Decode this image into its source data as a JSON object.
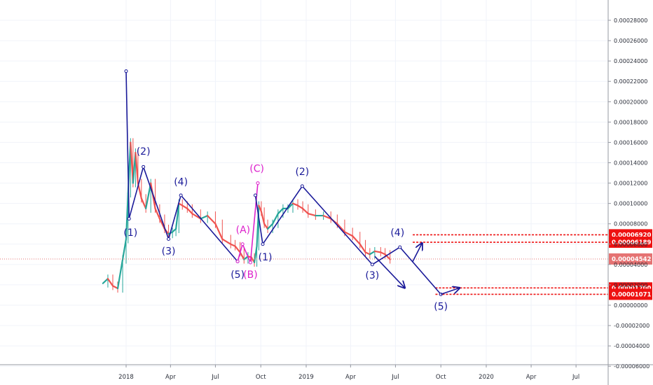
{
  "chart_data": {
    "type": "line",
    "title": "",
    "xlabel": "",
    "ylabel": "",
    "x_ticks": [
      "2018",
      "Apr",
      "Jul",
      "Oct",
      "2019",
      "Apr",
      "Jul",
      "Oct",
      "2020",
      "Apr",
      "Jul"
    ],
    "y_ticks": [
      "0.00028000",
      "0.00026000",
      "0.00024000",
      "0.00022000",
      "0.00020000",
      "0.00018000",
      "0.00016000",
      "0.00014000",
      "0.00012000",
      "0.00010000",
      "0.00008000",
      "0.00006000",
      "0.00004000",
      "0.00002000",
      "0.00000000",
      "-0.00002000",
      "-0.00004000",
      "-0.00006000"
    ],
    "ylim": [
      -6e-05,
      0.000296
    ],
    "grid": true,
    "current_price": "0.00004542",
    "horizontal_levels": [
      {
        "label": "0.00006920",
        "value": 6.92e-05
      },
      {
        "label": "0.00006189",
        "value": 6.189e-05
      },
      {
        "label": "0.00001700",
        "value": 1.7e-05
      },
      {
        "label": "0.00001071",
        "value": 1.071e-05
      }
    ],
    "price_series": {
      "name": "",
      "x": [
        "2017-11-15",
        "2017-11-25",
        "2017-12-05",
        "2017-12-15",
        "2017-12-25",
        "2018-01-01",
        "2018-01-05",
        "2018-01-10",
        "2018-01-15",
        "2018-01-20",
        "2018-01-25",
        "2018-02-01",
        "2018-02-10",
        "2018-02-20",
        "2018-03-01",
        "2018-03-10",
        "2018-03-20",
        "2018-03-28",
        "2018-04-05",
        "2018-04-12",
        "2018-04-18",
        "2018-04-25",
        "2018-05-05",
        "2018-05-15",
        "2018-06-01",
        "2018-06-15",
        "2018-07-01",
        "2018-07-15",
        "2018-08-01",
        "2018-08-10",
        "2018-08-20",
        "2018-08-28",
        "2018-09-05",
        "2018-09-12",
        "2018-09-18",
        "2018-09-23",
        "2018-09-27",
        "2018-10-02",
        "2018-10-08",
        "2018-10-15",
        "2018-10-25",
        "2018-11-05",
        "2018-11-15",
        "2018-11-25",
        "2018-12-05",
        "2018-12-15",
        "2018-12-25",
        "2019-01-05",
        "2019-01-20",
        "2019-02-05",
        "2019-02-20",
        "2019-03-05",
        "2019-03-20",
        "2019-04-05",
        "2019-04-20",
        "2019-05-01",
        "2019-05-10",
        "2019-05-20",
        "2019-06-01",
        "2019-06-10",
        "2019-06-20"
      ],
      "values": [
        2.15e-05,
        2.6e-05,
        1.9e-05,
        1.65e-05,
        4.5e-05,
        6.5e-05,
        0.00011,
        0.00016,
        0.00012,
        0.00015,
        0.00012,
        0.000105,
        9.5e-05,
        0.00012,
        9.5e-05,
        8.5e-05,
        7.5e-05,
        7e-05,
        7.2e-05,
        7.5e-05,
        0.0001,
        9.8e-05,
        9.5e-05,
        9e-05,
        8.5e-05,
        8.8e-05,
        8e-05,
        6.5e-05,
        6e-05,
        5.8e-05,
        5.2e-05,
        4.5e-05,
        4.8e-05,
        4.7e-05,
        4.2e-05,
        5.8e-05,
        9.8e-05,
        9.2e-05,
        8e-05,
        7.5e-05,
        8e-05,
        9e-05,
        9.5e-05,
        9.5e-05,
        0.0001,
        9.8e-05,
        9.5e-05,
        9e-05,
        8.8e-05,
        8.8e-05,
        8.5e-05,
        8e-05,
        7.2e-05,
        6.8e-05,
        6e-05,
        5.2e-05,
        5e-05,
        5.3e-05,
        5.2e-05,
        5e-05,
        4.5e-05
      ]
    },
    "wave_paths": [
      {
        "color": "#1a1a99",
        "points": [
          [
            "2018-01-01",
            0.00023
          ],
          [
            "2018-01-07",
            8.5e-05
          ],
          [
            "2018-02-05",
            0.000136
          ],
          [
            "2018-03-28",
            6.5e-05
          ],
          [
            "2018-04-22",
            0.000108
          ],
          [
            "2018-08-15",
            4.3e-05
          ]
        ]
      },
      {
        "color": "#dd22cc",
        "points": [
          [
            "2018-08-15",
            4.3e-05
          ],
          [
            "2018-08-25",
            6e-05
          ],
          [
            "2018-09-10",
            4.2e-05
          ],
          [
            "2018-09-25",
            0.00012
          ]
        ]
      },
      {
        "color": "#1a1a99",
        "points": [
          [
            "2018-09-20",
            0.000108
          ],
          [
            "2018-10-05",
            6e-05
          ],
          [
            "2018-12-24",
            0.000117
          ],
          [
            "2019-05-15",
            4e-05
          ],
          [
            "2019-07-10",
            5.7e-05
          ],
          [
            "2019-10-01",
            1.07e-05
          ]
        ]
      },
      {
        "color": "#1a1a99",
        "points": [
          [
            "2019-05-20",
            4.8e-05
          ],
          [
            "2019-07-20",
            1.7e-05
          ]
        ],
        "arrow": true
      },
      {
        "color": "#1a1a99",
        "points": [
          [
            "2019-08-05",
            4.3e-05
          ],
          [
            "2019-08-24",
            6.1e-05
          ]
        ],
        "arrow": true
      },
      {
        "color": "#1a1a99",
        "points": [
          [
            "2019-10-01",
            1.07e-05
          ],
          [
            "2019-11-08",
            1.7e-05
          ]
        ],
        "arrow": true
      }
    ],
    "wave_labels": [
      {
        "text": "(1)",
        "x": "2018-01-10",
        "y": 6.8e-05,
        "color": "#1a1a99"
      },
      {
        "text": "(2)",
        "x": "2018-02-05",
        "y": 0.000148,
        "color": "#1a1a99"
      },
      {
        "text": "(3)",
        "x": "2018-03-28",
        "y": 5e-05,
        "color": "#1a1a99"
      },
      {
        "text": "(4)",
        "x": "2018-04-22",
        "y": 0.000118,
        "color": "#1a1a99"
      },
      {
        "text": "(5)",
        "x": "2018-08-15",
        "y": 2.7e-05,
        "color": "#1a1a99"
      },
      {
        "text": "(A)",
        "x": "2018-08-26",
        "y": 7.1e-05,
        "color": "#dd22cc"
      },
      {
        "text": "(B)",
        "x": "2018-09-10",
        "y": 2.7e-05,
        "color": "#dd22cc"
      },
      {
        "text": "(C)",
        "x": "2018-09-23",
        "y": 0.000131,
        "color": "#dd22cc"
      },
      {
        "text": "(1)",
        "x": "2018-10-10",
        "y": 4.4e-05,
        "color": "#1a1a99"
      },
      {
        "text": "(2)",
        "x": "2018-12-24",
        "y": 0.000128,
        "color": "#1a1a99"
      },
      {
        "text": "(3)",
        "x": "2019-05-15",
        "y": 2.6e-05,
        "color": "#1a1a99"
      },
      {
        "text": "(4)",
        "x": "2019-07-05",
        "y": 6.8e-05,
        "color": "#1a1a99"
      },
      {
        "text": "(5)",
        "x": "2019-10-01",
        "y": -4.5e-06,
        "color": "#1a1a99"
      }
    ],
    "colors": {
      "wave": "#1a1a99",
      "corrective": "#dd22cc",
      "levels": "#ee1111",
      "current": "#e57373",
      "up": "#26a69a",
      "down": "#ef5350"
    }
  }
}
